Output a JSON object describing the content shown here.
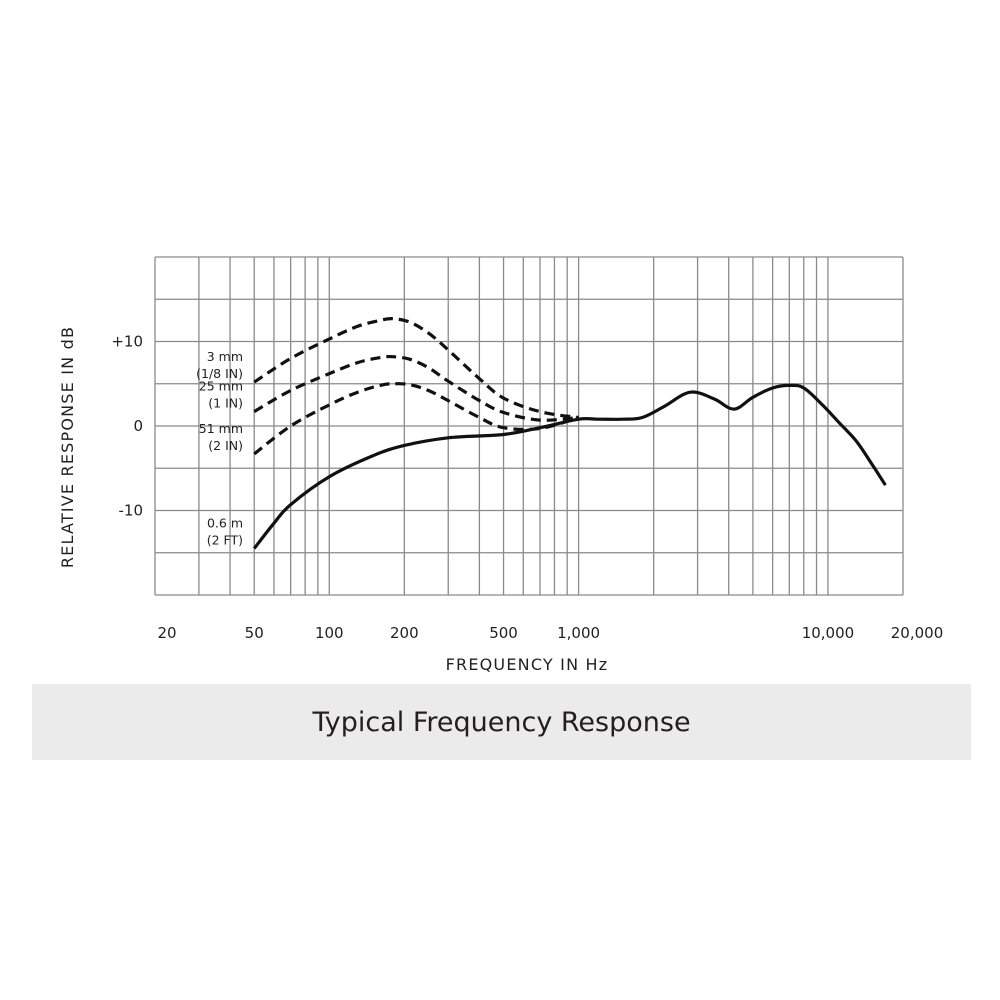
{
  "chart_data": {
    "type": "line",
    "title": "Typical Frequency Response",
    "xlabel": "FREQUENCY IN Hz",
    "ylabel": "RELATIVE RESPONSE IN dB",
    "x_scale": "log",
    "xlim": [
      20,
      20000
    ],
    "ylim": [
      -20,
      20
    ],
    "grid": true,
    "x_tick_labels": [
      {
        "value": 20,
        "label": "20"
      },
      {
        "value": 50,
        "label": "50"
      },
      {
        "value": 100,
        "label": "100"
      },
      {
        "value": 200,
        "label": "200"
      },
      {
        "value": 500,
        "label": "500"
      },
      {
        "value": 1000,
        "label": "1,000"
      },
      {
        "value": 10000,
        "label": "10,000"
      },
      {
        "value": 20000,
        "label": "20,000"
      }
    ],
    "y_tick_labels": [
      {
        "value": 10,
        "label": "+10"
      },
      {
        "value": 0,
        "label": "0"
      },
      {
        "value": -10,
        "label": "-10"
      }
    ],
    "series": [
      {
        "name": "3 mm (1/8 IN)",
        "label_lines": [
          "3 mm",
          "(1/8 IN)"
        ],
        "style": "dashed",
        "x": [
          50,
          70,
          100,
          130,
          160,
          180,
          210,
          250,
          300,
          400,
          500,
          700,
          1000
        ],
        "y": [
          5.2,
          8.0,
          10.3,
          11.8,
          12.5,
          12.7,
          12.3,
          11.0,
          9.0,
          5.6,
          3.3,
          1.7,
          1.0
        ]
      },
      {
        "name": "25 mm (1 IN)",
        "label_lines": [
          "25 mm",
          "(1 IN)"
        ],
        "style": "dashed",
        "x": [
          50,
          70,
          100,
          130,
          160,
          180,
          210,
          250,
          300,
          400,
          500,
          700,
          1000
        ],
        "y": [
          1.7,
          4.2,
          6.2,
          7.5,
          8.1,
          8.2,
          7.9,
          6.9,
          5.3,
          3.0,
          1.6,
          0.7,
          1.0
        ]
      },
      {
        "name": "51 mm (2 IN)",
        "label_lines": [
          "51 mm",
          "(2 IN)"
        ],
        "style": "dashed",
        "x": [
          50,
          70,
          100,
          130,
          160,
          180,
          210,
          250,
          300,
          400,
          500,
          700,
          1000
        ],
        "y": [
          -3.3,
          0.0,
          2.5,
          4.0,
          4.8,
          5.0,
          4.9,
          4.2,
          3.0,
          1.0,
          -0.2,
          -0.3,
          1.0
        ]
      },
      {
        "name": "0.6 m (2 FT)",
        "label_lines": [
          "0.6 m",
          "(2 FT)"
        ],
        "style": "solid",
        "x": [
          50,
          60,
          70,
          100,
          150,
          200,
          300,
          500,
          700,
          1000,
          1200,
          1500,
          1800,
          2200,
          2800,
          3500,
          4200,
          5000,
          6000,
          7000,
          8000,
          9500,
          11000,
          13000,
          15000,
          17000
        ],
        "y": [
          -14.5,
          -11.5,
          -9.3,
          -6.0,
          -3.5,
          -2.3,
          -1.4,
          -1.0,
          -0.2,
          0.8,
          0.8,
          0.8,
          1.0,
          2.3,
          4.0,
          3.2,
          2.0,
          3.4,
          4.5,
          4.8,
          4.5,
          2.5,
          0.5,
          -1.8,
          -4.5,
          -7.0
        ]
      }
    ]
  },
  "caption": "Typical Frequency Response"
}
